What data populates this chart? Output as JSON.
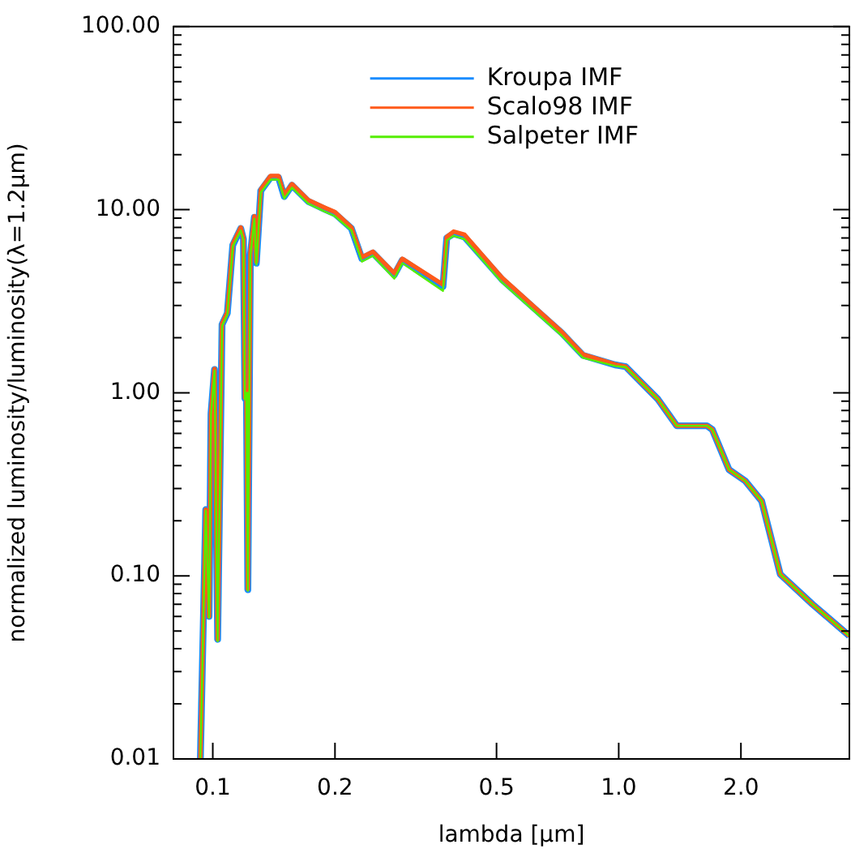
{
  "chart_data": {
    "type": "line",
    "xlabel": "lambda [μm]",
    "ylabel": "normalized luminosity/luminosity(λ=1.2μm)",
    "log": "xy",
    "grid": false,
    "legend": "top right",
    "marker": "none",
    "line_style": "solid",
    "xlim": [
      0.08,
      3.7
    ],
    "ylim": [
      0.01,
      100
    ],
    "xticks": [
      0.1,
      0.2,
      0.5,
      {
        "value": 1,
        "label": "1.0"
      },
      {
        "value": 2,
        "label": "2.0"
      }
    ],
    "yticks": [
      {
        "value": 0.01,
        "label": "0.01"
      },
      {
        "value": 0.02,
        "label": null
      },
      {
        "value": 0.03,
        "label": null
      },
      {
        "value": 0.04,
        "label": null
      },
      {
        "value": 0.05,
        "label": null
      },
      {
        "value": 0.06,
        "label": null
      },
      {
        "value": 0.07,
        "label": null
      },
      {
        "value": 0.08,
        "label": null
      },
      {
        "value": 0.09,
        "label": null
      },
      {
        "value": 0.1,
        "label": "0.10"
      },
      {
        "value": 0.2,
        "label": null
      },
      {
        "value": 0.3,
        "label": null
      },
      {
        "value": 0.4,
        "label": null
      },
      {
        "value": 0.5,
        "label": null
      },
      {
        "value": 0.6,
        "label": null
      },
      {
        "value": 0.7,
        "label": null
      },
      {
        "value": 0.8,
        "label": null
      },
      {
        "value": 0.9,
        "label": null
      },
      {
        "value": 1,
        "label": "1.00"
      },
      {
        "value": 2,
        "label": null
      },
      {
        "value": 3,
        "label": null
      },
      {
        "value": 4,
        "label": null
      },
      {
        "value": 5,
        "label": null
      },
      {
        "value": 6,
        "label": null
      },
      {
        "value": 7,
        "label": null
      },
      {
        "value": 8,
        "label": null
      },
      {
        "value": 9,
        "label": null
      },
      {
        "value": 10,
        "label": "10.00"
      },
      {
        "value": 20,
        "label": null
      },
      {
        "value": 30,
        "label": null
      },
      {
        "value": 40,
        "label": null
      },
      {
        "value": 50,
        "label": null
      },
      {
        "value": 60,
        "label": null
      },
      {
        "value": 70,
        "label": null
      },
      {
        "value": 80,
        "label": null
      },
      {
        "value": 90,
        "label": null
      },
      {
        "value": 100,
        "label": "100.00"
      }
    ],
    "x": [
      0.0932,
      0.0961,
      0.0979,
      0.099,
      0.101,
      0.1028,
      0.1054,
      0.1086,
      0.112,
      0.1172,
      0.119,
      0.12,
      0.121,
      0.122,
      0.1238,
      0.1266,
      0.128,
      0.1313,
      0.1388,
      0.1452,
      0.15,
      0.1567,
      0.1718,
      0.188,
      0.2,
      0.2195,
      0.233,
      0.248,
      0.28,
      0.293,
      0.369,
      0.377,
      0.392,
      0.417,
      0.516,
      0.724,
      0.817,
      0.98,
      1.04,
      1.25,
      1.39,
      1.65,
      1.7,
      1.87,
      2.05,
      2.25,
      2.5,
      3.0,
      3.7
    ],
    "series": [
      {
        "name": "Kroupa IMF",
        "color": "#1a8cff",
        "values": [
          0.01,
          0.23,
          0.06,
          0.77,
          1.34,
          0.045,
          2.36,
          2.72,
          6.4,
          7.9,
          6.9,
          0.93,
          1.02,
          0.084,
          5.7,
          9.1,
          5.1,
          12.7,
          15.0,
          15.0,
          11.8,
          13.6,
          11.1,
          10.1,
          9.5,
          7.9,
          5.4,
          5.8,
          4.4,
          5.3,
          3.8,
          7.0,
          7.4,
          7.1,
          4.15,
          2.12,
          1.6,
          1.42,
          1.39,
          0.92,
          0.66,
          0.66,
          0.63,
          0.38,
          0.33,
          0.256,
          0.102,
          0.07,
          0.047
        ]
      },
      {
        "name": "Scalo98 IMF",
        "color": "#ff5a1a",
        "values": [
          0.01,
          0.23,
          0.06,
          0.77,
          1.35,
          0.045,
          2.38,
          2.75,
          6.5,
          8.0,
          7.0,
          0.94,
          1.03,
          0.085,
          5.8,
          9.2,
          5.2,
          12.9,
          15.3,
          15.3,
          12.0,
          13.8,
          11.3,
          10.3,
          9.7,
          8.0,
          5.5,
          5.9,
          4.5,
          5.4,
          3.9,
          7.1,
          7.6,
          7.3,
          4.25,
          2.15,
          1.62,
          1.43,
          1.39,
          0.92,
          0.66,
          0.66,
          0.63,
          0.38,
          0.33,
          0.256,
          0.102,
          0.07,
          0.047
        ]
      },
      {
        "name": "Salpeter IMF",
        "color": "#55ee00",
        "values": [
          0.01,
          0.227,
          0.059,
          0.76,
          1.32,
          0.044,
          2.32,
          2.67,
          6.3,
          7.7,
          6.8,
          0.92,
          1.0,
          0.083,
          5.6,
          8.9,
          5.0,
          12.4,
          14.6,
          14.6,
          11.5,
          13.2,
          10.8,
          9.8,
          9.2,
          7.7,
          5.2,
          5.6,
          4.2,
          5.1,
          3.6,
          6.8,
          7.2,
          6.9,
          4.0,
          2.05,
          1.55,
          1.4,
          1.38,
          0.92,
          0.66,
          0.66,
          0.63,
          0.38,
          0.33,
          0.256,
          0.102,
          0.07,
          0.047
        ]
      }
    ]
  }
}
